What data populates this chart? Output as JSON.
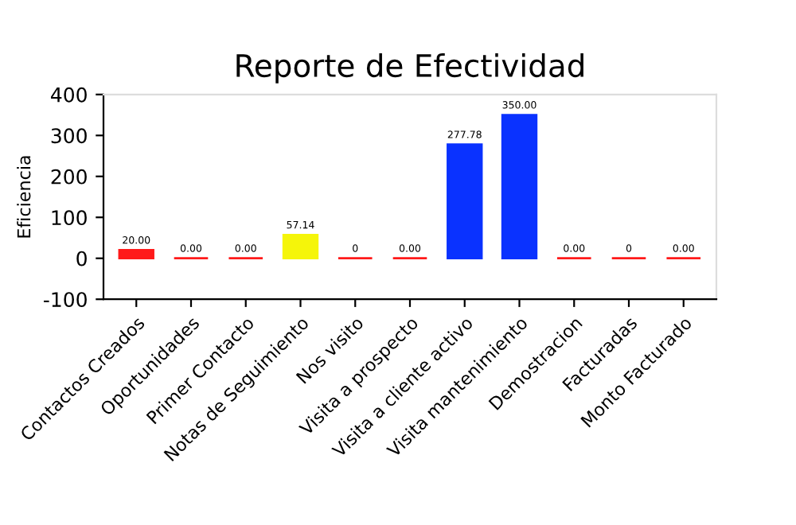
{
  "chart_data": {
    "type": "bar",
    "title": "Reporte de Efectividad",
    "ylabel": "Eficiencia",
    "categories": [
      "Contactos Creados",
      "Oportunidades",
      "Primer Contacto",
      "Notas de Seguimiento",
      "Nos visito",
      "Visita a prospecto",
      "Visita a cliente activo",
      "Visita mantenimiento",
      "Demostracion",
      "Facturadas",
      "Monto Facturado"
    ],
    "values": [
      20,
      0,
      0,
      57.14,
      0,
      0,
      277.78,
      350,
      0,
      0,
      0
    ],
    "colors": [
      "#ff1a1a",
      "#ff1a1a",
      "#ff1a1a",
      "#f5f50a",
      "#ff1a1a",
      "#ff1a1a",
      "#0a32ff",
      "#0a32ff",
      "#ff1a1a",
      "#ff1a1a",
      "#ff1a1a"
    ],
    "value_labels": [
      "20.00",
      "0.00",
      "0.00",
      "57.14",
      "0",
      "0.00",
      "277.78",
      "350.00",
      "0.00",
      "0",
      "0.00"
    ],
    "ylim": [
      -100,
      400
    ],
    "yticks": [
      -100,
      0,
      100,
      200,
      300,
      400
    ],
    "grid": false,
    "legend": false
  }
}
